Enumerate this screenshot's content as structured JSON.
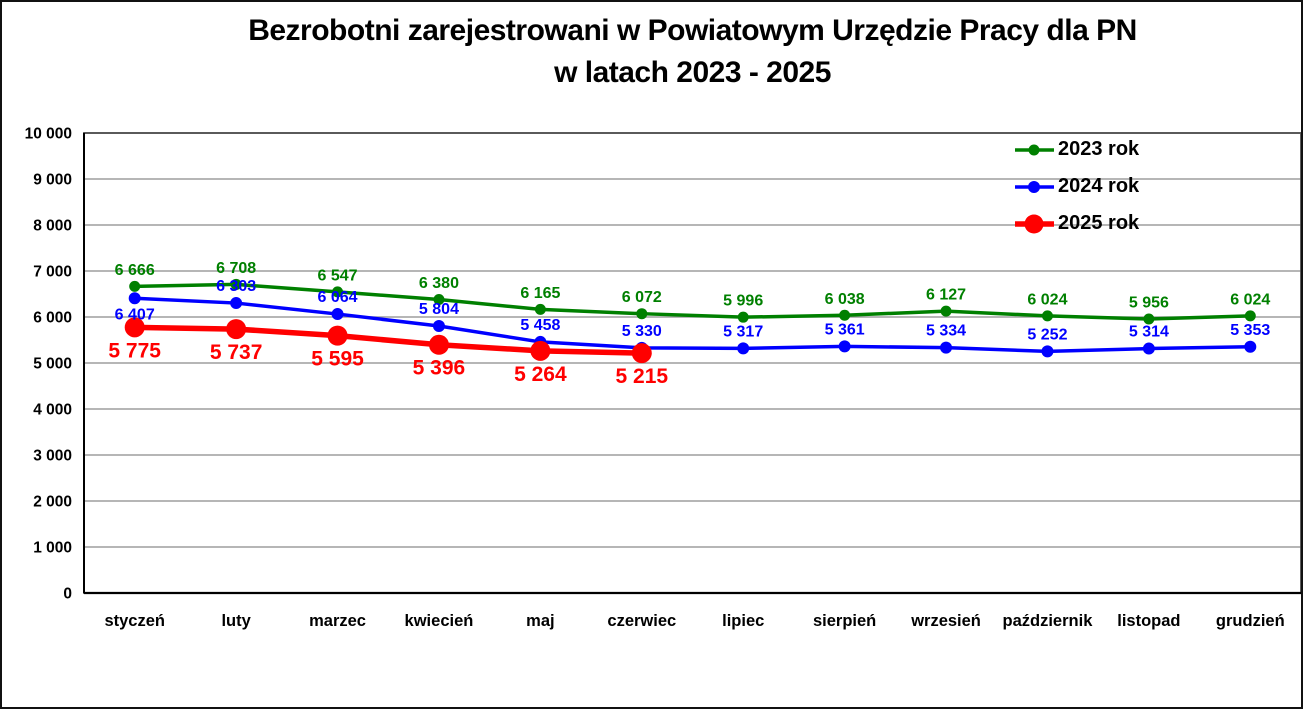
{
  "title": {
    "line1": "Bezrobotni zarejestrowani w Powiatowym Urzędzie Pracy dla PN",
    "line2": "w latach 2023 - 2025"
  },
  "colors": {
    "background": "#ffffff",
    "grid": "#9d9d9d",
    "frame": "#4d4d4d",
    "axis": "#000000",
    "text": "#000000",
    "series_2023": "#008000",
    "series_2024": "#0000ff",
    "series_2025": "#ff0000"
  },
  "chart_data": {
    "type": "line",
    "title": "Bezrobotni zarejestrowani w Powiatowym Urzędzie Pracy dla PN w latach 2023 - 2025",
    "xlabel": "",
    "ylabel": "",
    "ylim": [
      0,
      10000
    ],
    "ytick_step": 1000,
    "ytick_labels": [
      "0",
      "1 000",
      "2 000",
      "3 000",
      "4 000",
      "5 000",
      "6 000",
      "7 000",
      "8 000",
      "9 000",
      "10 000"
    ],
    "grid": true,
    "legend_position": "top-right",
    "categories": [
      "styczeń",
      "luty",
      "marzec",
      "kwiecień",
      "maj",
      "czerwiec",
      "lipiec",
      "sierpień",
      "wrzesień",
      "październik",
      "listopad",
      "grudzień"
    ],
    "series": [
      {
        "name": "2023 rok",
        "color": "#008000",
        "values": [
          6666,
          6708,
          6547,
          6380,
          6165,
          6072,
          5996,
          6038,
          6127,
          6024,
          5956,
          6024
        ],
        "point_labels": [
          "6 666",
          "6 708",
          "6 547",
          "6 380",
          "6 165",
          "6 072",
          "5 996",
          "6 038",
          "6 127",
          "6 024",
          "5 956",
          "6 024"
        ],
        "label_position": "above"
      },
      {
        "name": "2024 rok",
        "color": "#0000ff",
        "values": [
          6407,
          6303,
          6064,
          5804,
          5458,
          5330,
          5317,
          5361,
          5334,
          5252,
          5314,
          5353
        ],
        "point_labels": [
          "6 407",
          "6 303",
          "6 064",
          "5 804",
          "5 458",
          "5 330",
          "5 317",
          "5 361",
          "5 334",
          "5 252",
          "5 314",
          "5 353"
        ],
        "label_position": "above",
        "label_position_overrides": {
          "0": "below"
        }
      },
      {
        "name": "2025 rok",
        "color": "#ff0000",
        "values": [
          5775,
          5737,
          5595,
          5396,
          5264,
          5215
        ],
        "point_labels": [
          "5 775",
          "5 737",
          "5 595",
          "5 396",
          "5 264",
          "5 215"
        ],
        "label_position": "below",
        "emphasis": true
      }
    ]
  }
}
